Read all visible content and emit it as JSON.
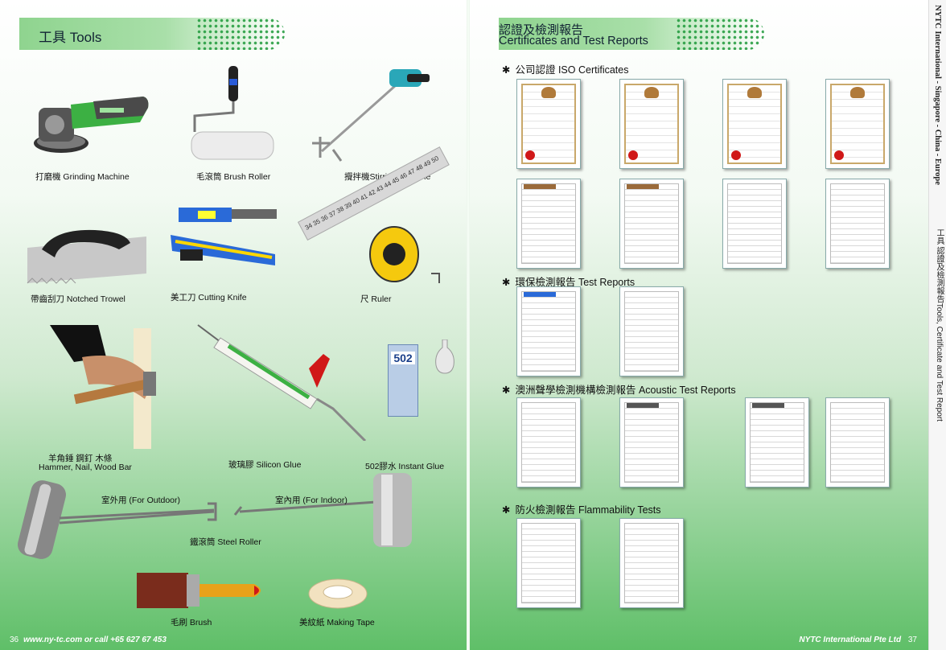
{
  "left_page": {
    "title": "工具 Tools",
    "products": [
      {
        "id": "grinding",
        "label": "打磨機 Grinding Machine"
      },
      {
        "id": "roller",
        "label": "毛滾筒 Brush Roller"
      },
      {
        "id": "stirring",
        "label": "攪拌機Stirring Machine"
      },
      {
        "id": "trowel",
        "label": "帶齒刮刀 Notched Trowel"
      },
      {
        "id": "knife",
        "label": "美工刀 Cutting Knife"
      },
      {
        "id": "ruler",
        "label": "尺 Ruler"
      },
      {
        "id": "hammer_zh",
        "label": "羊角錘  鋼釘  木條"
      },
      {
        "id": "hammer_en",
        "label": "Hammer, Nail, Wood Bar"
      },
      {
        "id": "silicon",
        "label": "玻璃膠 Silicon Glue"
      },
      {
        "id": "instant",
        "label": "502膠水 Instant Glue"
      },
      {
        "id": "outdoor",
        "label": "室外用  (For Outdoor)"
      },
      {
        "id": "indoor",
        "label": "室內用  (For Indoor)"
      },
      {
        "id": "steelroller",
        "label": "鐵滾筒 Steel Roller"
      },
      {
        "id": "brush",
        "label": "毛刷 Brush"
      },
      {
        "id": "tape",
        "label": "美紋紙 Making Tape"
      }
    ],
    "ruler_numbers": "34 35 36 37 38 39 40 41 42 43 44 45 46 47 48 49 50",
    "glue_label": "502",
    "footer_page": "36",
    "footer_text": "www.ny-tc.com  or call +65 627 67 453"
  },
  "right_page": {
    "title_zh": "認證及檢測報告",
    "title_en": "Certificates and Test Reports",
    "sections": [
      {
        "star": "✱",
        "label": "公司認證  ISO Certificates"
      },
      {
        "star": "✱",
        "label": "環保檢測報告  Test Reports"
      },
      {
        "star": "✱",
        "label": "澳洲聲學檢測機構檢測報告 Acoustic Test Reports"
      },
      {
        "star": "✱",
        "label": "防火檢測報告  Flammability Tests"
      }
    ],
    "footer_text": "NYTC International Pte Ltd",
    "footer_page": "37"
  },
  "sidebar": {
    "line1": "NYTC International - Singapore - China - Europe",
    "line2": "工具 認證及檢測報告Tools, Certificate and Test Report"
  },
  "colors": {
    "banner": "#a9dfa9",
    "dots": "#1e9a3a",
    "product_green": "#3cb043",
    "accent_red": "#d01818"
  }
}
